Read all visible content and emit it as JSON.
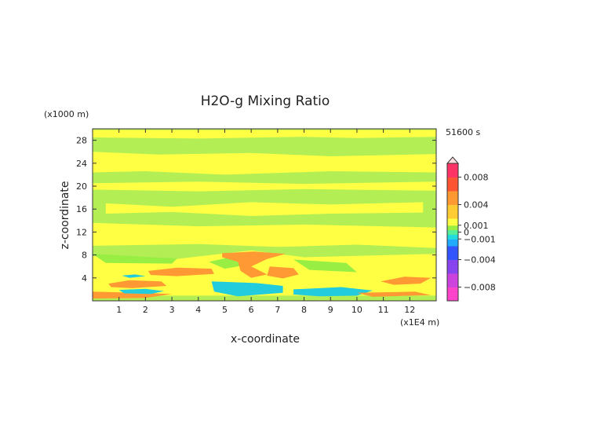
{
  "chart_data": {
    "type": "heatmap",
    "title": "H2O-g Mixing Ratio",
    "xlabel": "x-coordinate",
    "ylabel": "z-coordinate",
    "x_unit_label": "(x1E4 m)",
    "y_unit_label": "(x1000 m)",
    "time_label": "51600 s",
    "xlim": [
      0,
      13
    ],
    "ylim": [
      0,
      30
    ],
    "x_ticks": [
      1,
      2,
      3,
      4,
      5,
      6,
      7,
      8,
      9,
      10,
      11,
      12
    ],
    "y_ticks": [
      4,
      8,
      12,
      16,
      20,
      24,
      28
    ],
    "colorbar": {
      "range": [
        -0.01,
        0.01
      ],
      "tick_values": [
        0.008,
        0.004,
        0.001,
        0,
        -0.001,
        -0.004,
        -0.008
      ],
      "tick_labels": [
        "0.008",
        "0.004",
        "0.001",
        "0",
        "−0.001",
        "−0.004",
        "−0.008"
      ]
    },
    "regions": [
      {
        "level": "positive-small",
        "color": "#ffff44",
        "polygon": [
          [
            0,
            29.8
          ],
          [
            13,
            29.8
          ],
          [
            13,
            28.6
          ],
          [
            10,
            28.4
          ],
          [
            8,
            28.6
          ],
          [
            4,
            28.3
          ],
          [
            0,
            28.5
          ]
        ]
      },
      {
        "level": "positive-small",
        "color": "#ffff44",
        "polygon": [
          [
            0,
            26
          ],
          [
            2.5,
            25.5
          ],
          [
            6,
            25.8
          ],
          [
            9,
            25.2
          ],
          [
            13,
            25.6
          ],
          [
            13,
            22.4
          ],
          [
            9,
            22.6
          ],
          [
            5,
            22
          ],
          [
            2,
            22.6
          ],
          [
            0,
            22.4
          ]
        ]
      },
      {
        "level": "positive-small",
        "color": "#ffff44",
        "polygon": [
          [
            0,
            20.5
          ],
          [
            4,
            20.8
          ],
          [
            8,
            20.4
          ],
          [
            13,
            20.8
          ],
          [
            13,
            19.2
          ],
          [
            8,
            19.5
          ],
          [
            4,
            19.1
          ],
          [
            0,
            19.4
          ]
        ]
      },
      {
        "level": "positive-small",
        "color": "#ffff44",
        "polygon": [
          [
            0.5,
            17
          ],
          [
            3,
            16.4
          ],
          [
            6,
            17.2
          ],
          [
            9,
            16.8
          ],
          [
            12.5,
            17.2
          ],
          [
            12.5,
            15.4
          ],
          [
            9,
            15.2
          ],
          [
            6,
            14.8
          ],
          [
            3,
            15.5
          ],
          [
            0.5,
            15.2
          ]
        ]
      },
      {
        "level": "positive-small",
        "color": "#ffff44",
        "polygon": [
          [
            0,
            13.6
          ],
          [
            4,
            13
          ],
          [
            8,
            13.3
          ],
          [
            13,
            12.8
          ],
          [
            13,
            9.2
          ],
          [
            10,
            9.8
          ],
          [
            7,
            9.4
          ],
          [
            4,
            9.9
          ],
          [
            0,
            9.6
          ]
        ]
      },
      {
        "level": "positive-small",
        "color": "#ffff44",
        "polygon": [
          [
            0,
            7.8
          ],
          [
            3,
            7.2
          ],
          [
            6,
            8.8
          ],
          [
            8,
            7.6
          ],
          [
            13,
            8.2
          ],
          [
            13,
            0.9
          ],
          [
            0,
            0.9
          ]
        ]
      },
      {
        "level": "zero-band",
        "color": "#99ee44",
        "polygon": [
          [
            0,
            8.2
          ],
          [
            3.2,
            7.4
          ],
          [
            3,
            6.5
          ],
          [
            0.5,
            6.6
          ]
        ]
      },
      {
        "level": "zero-band",
        "color": "#99ee44",
        "polygon": [
          [
            5.2,
            7.6
          ],
          [
            6,
            6.4
          ],
          [
            5,
            5.6
          ],
          [
            4.4,
            6.8
          ]
        ]
      },
      {
        "level": "zero-band",
        "color": "#99ee44",
        "polygon": [
          [
            7.6,
            7.2
          ],
          [
            9.6,
            6.6
          ],
          [
            10,
            5
          ],
          [
            8.2,
            5.4
          ]
        ]
      },
      {
        "level": "positive-mid",
        "color": "#ff9933",
        "polygon": [
          [
            0.6,
            3
          ],
          [
            1.4,
            3.6
          ],
          [
            2.6,
            3.4
          ],
          [
            2.8,
            2.6
          ],
          [
            1.5,
            2.2
          ],
          [
            0.7,
            2.4
          ]
        ]
      },
      {
        "level": "positive-mid",
        "color": "#ff9933",
        "polygon": [
          [
            2.1,
            5.2
          ],
          [
            3.2,
            5.8
          ],
          [
            4.5,
            5.6
          ],
          [
            4.6,
            4.7
          ],
          [
            3.2,
            4.3
          ],
          [
            2.2,
            4.5
          ]
        ]
      },
      {
        "level": "positive-mid",
        "color": "#ff9933",
        "polygon": [
          [
            4.9,
            8.3
          ],
          [
            6.1,
            8.6
          ],
          [
            7.3,
            8.2
          ],
          [
            6.6,
            7.3
          ],
          [
            6,
            6
          ],
          [
            6.6,
            4.6
          ],
          [
            6,
            4
          ],
          [
            5.6,
            5.2
          ],
          [
            5.5,
            6.8
          ],
          [
            4.9,
            7.6
          ]
        ]
      },
      {
        "level": "positive-mid",
        "color": "#ff9933",
        "polygon": [
          [
            6.7,
            6
          ],
          [
            7.6,
            5.7
          ],
          [
            7.8,
            4.6
          ],
          [
            7.2,
            3.9
          ],
          [
            6.6,
            4.4
          ]
        ]
      },
      {
        "level": "positive-mid",
        "color": "#ff9933",
        "polygon": [
          [
            10.9,
            3.4
          ],
          [
            11.8,
            4.2
          ],
          [
            12.8,
            4
          ],
          [
            12.4,
            3
          ],
          [
            11.4,
            2.8
          ]
        ]
      },
      {
        "level": "positive-mid",
        "color": "#ff9933",
        "polygon": [
          [
            0,
            1.6
          ],
          [
            1.6,
            1.4
          ],
          [
            3,
            1.2
          ],
          [
            2,
            0.5
          ],
          [
            0,
            0.4
          ]
        ]
      },
      {
        "level": "negative-mid",
        "color": "#22ccdd",
        "polygon": [
          [
            4.5,
            3.4
          ],
          [
            6.2,
            3.1
          ],
          [
            7.2,
            2.6
          ],
          [
            7.2,
            1.4
          ],
          [
            5.5,
            0.8
          ],
          [
            4.6,
            1.6
          ]
        ]
      },
      {
        "level": "negative-mid",
        "color": "#22ccdd",
        "polygon": [
          [
            7.6,
            2
          ],
          [
            9.4,
            2.4
          ],
          [
            10.6,
            1.8
          ],
          [
            10,
            0.9
          ],
          [
            8.6,
            0.8
          ],
          [
            7.6,
            1.1
          ]
        ]
      },
      {
        "level": "negative-mid",
        "color": "#22ccdd",
        "polygon": [
          [
            1,
            1.9
          ],
          [
            2,
            2.1
          ],
          [
            2.7,
            1.7
          ],
          [
            2.2,
            1.2
          ],
          [
            1.2,
            1.3
          ]
        ]
      },
      {
        "level": "negative-mid",
        "color": "#22ccdd",
        "polygon": [
          [
            1.1,
            4.4
          ],
          [
            1.6,
            4.6
          ],
          [
            2,
            4.3
          ],
          [
            1.4,
            4.0
          ]
        ]
      },
      {
        "level": "positive-mid",
        "color": "#ff9933",
        "polygon": [
          [
            10,
            1.4
          ],
          [
            12.2,
            1.6
          ],
          [
            12.8,
            1
          ],
          [
            10.6,
            0.7
          ]
        ]
      }
    ]
  }
}
